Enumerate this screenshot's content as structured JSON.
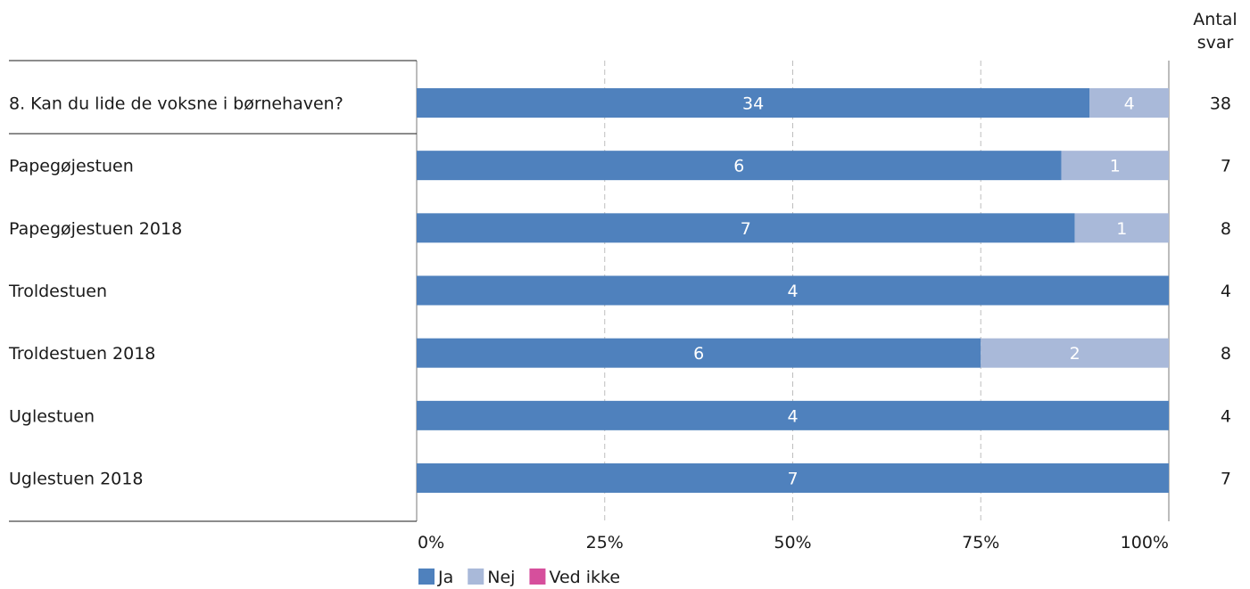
{
  "chart_data": {
    "type": "bar",
    "orientation": "horizontal",
    "stacked": "percent",
    "count_header": [
      "Antal",
      "svar"
    ],
    "x_ticks": [
      "0%",
      "25%",
      "50%",
      "75%",
      "100%"
    ],
    "legend_position": "bottom",
    "series": [
      {
        "name": "Ja",
        "color": "#4f81bd"
      },
      {
        "name": "Nej",
        "color": "#a9b9d9"
      },
      {
        "name": "Ved ikke",
        "color": "#d64f9c"
      }
    ],
    "rows": [
      {
        "label": "8. Kan du lide de voksne i børnehaven?",
        "values": [
          34,
          4,
          0
        ],
        "total": "38"
      },
      {
        "label": "Papegøjestuen",
        "values": [
          6,
          1,
          0
        ],
        "total": "7"
      },
      {
        "label": "Papegøjestuen 2018",
        "values": [
          7,
          1,
          0
        ],
        "total": "8"
      },
      {
        "label": "Troldestuen",
        "values": [
          4,
          0,
          0
        ],
        "total": "4"
      },
      {
        "label": "Troldestuen 2018",
        "values": [
          6,
          2,
          0
        ],
        "total": "8"
      },
      {
        "label": "Uglestuen",
        "values": [
          4,
          0,
          0
        ],
        "total": "4"
      },
      {
        "label": "Uglestuen 2018",
        "values": [
          7,
          0,
          0
        ],
        "total": "7"
      }
    ]
  }
}
